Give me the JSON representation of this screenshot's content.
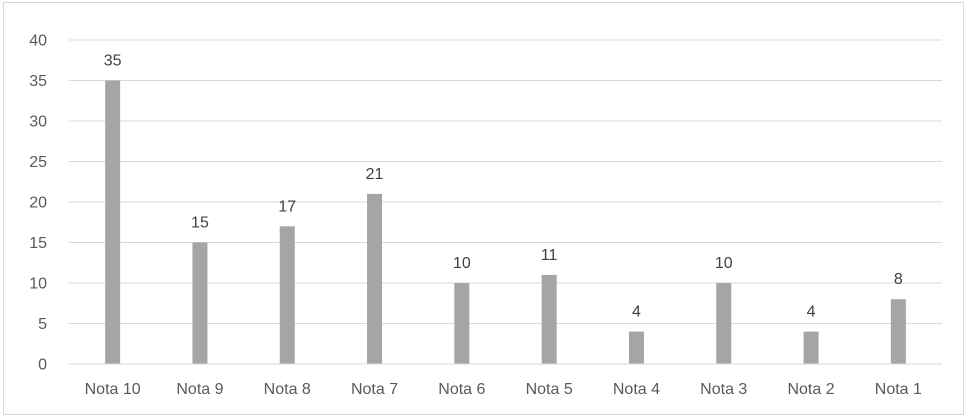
{
  "chart_data": {
    "type": "bar",
    "title": "",
    "xlabel": "",
    "ylabel": "",
    "categories": [
      "Nota 10",
      "Nota 9",
      "Nota 8",
      "Nota 7",
      "Nota 6",
      "Nota 5",
      "Nota 4",
      "Nota 3",
      "Nota 2",
      "Nota 1"
    ],
    "values": [
      35,
      15,
      17,
      21,
      10,
      11,
      4,
      10,
      4,
      8
    ],
    "ylim": [
      0,
      40
    ],
    "y_ticks": [
      0,
      5,
      10,
      15,
      20,
      25,
      30,
      35,
      40
    ],
    "grid": true,
    "legend": "none",
    "data_labels": true,
    "colors": {
      "bar": "#a5a5a5",
      "grid": "#d9d9d9",
      "axis": "#d9d9d9",
      "tick_text": "#595959",
      "label_text": "#404040"
    }
  }
}
